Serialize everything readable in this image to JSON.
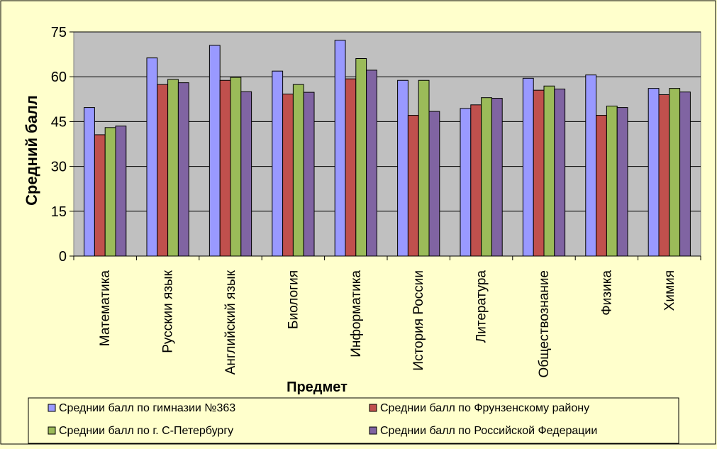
{
  "chart_data": {
    "type": "bar",
    "ylabel": "Средний балл",
    "xlabel": "Предмет",
    "ylim": [
      0,
      75
    ],
    "yticks": [
      "0",
      "15",
      "30",
      "45",
      "60",
      "75"
    ],
    "grid": true,
    "legend_position": "bottom",
    "plot_background": "#c0c0c0",
    "page_background": "#ffffcc",
    "categories": [
      "Математика",
      "Русскии язык",
      "Английский язык",
      "Биология",
      "Информатика",
      "История России",
      "Литература",
      "Обществознание",
      "Физика",
      "Химия"
    ],
    "series": [
      {
        "name": "Среднии балл по гимназии №363",
        "color": "#9999ff",
        "values": [
          49.7,
          66.3,
          70.5,
          61.9,
          72.2,
          58.8,
          49.4,
          59.5,
          60.6,
          56.1
        ]
      },
      {
        "name": "Среднии балл по Фрунзенскому району",
        "color": "#c0504d",
        "values": [
          40.6,
          57.4,
          58.8,
          54.2,
          59.3,
          47.1,
          50.6,
          55.5,
          47.1,
          54.0
        ]
      },
      {
        "name": "Среднии балл по г. С-Петербургу",
        "color": "#9bbb59",
        "values": [
          43.0,
          59.1,
          59.8,
          57.4,
          66.1,
          58.8,
          53.0,
          56.9,
          50.2,
          56.1
        ]
      },
      {
        "name": "Среднии балл по Российской Федерации",
        "color": "#8064a2",
        "values": [
          43.5,
          58.0,
          55.0,
          54.8,
          62.2,
          48.4,
          52.8,
          55.9,
          49.7,
          54.9
        ]
      }
    ]
  }
}
